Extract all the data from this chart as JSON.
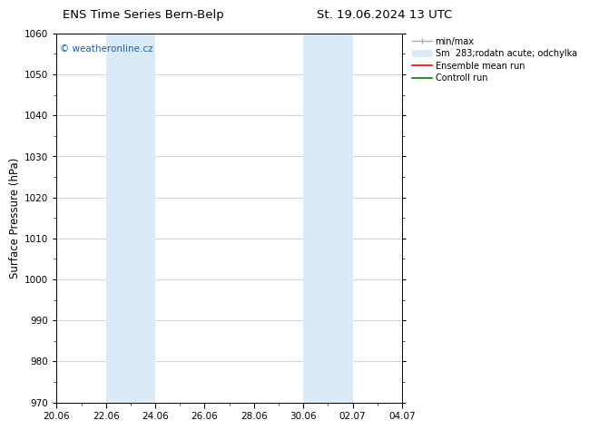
{
  "title_left": "ENS Time Series Bern-Belp",
  "title_right": "St. 19.06.2024 13 UTC",
  "ylabel": "Surface Pressure (hPa)",
  "ylim": [
    970,
    1060
  ],
  "yticks": [
    970,
    980,
    990,
    1000,
    1010,
    1020,
    1030,
    1040,
    1050,
    1060
  ],
  "xtick_labels": [
    "20.06",
    "22.06",
    "24.06",
    "26.06",
    "28.06",
    "30.06",
    "02.07",
    "04.07"
  ],
  "xtick_positions": [
    0,
    2,
    4,
    6,
    8,
    10,
    12,
    14
  ],
  "x_total": 14,
  "shaded_regions": [
    {
      "x_start": 2,
      "x_end": 4,
      "color": "#daeaf7"
    },
    {
      "x_start": 10,
      "x_end": 12,
      "color": "#daeaf7"
    }
  ],
  "watermark_text": "© weatheronline.cz",
  "watermark_color": "#1a5fb4",
  "legend_entries": [
    {
      "label": "min/max"
    },
    {
      "label": "Sm  283;rodatn acute; odchylka"
    },
    {
      "label": "Ensemble mean run"
    },
    {
      "label": "Controll run"
    }
  ],
  "bg_color": "#ffffff",
  "plot_bg_color": "#ffffff",
  "grid_color": "#cccccc",
  "tick_label_fontsize": 7.5,
  "axis_label_fontsize": 8.5,
  "title_fontsize": 9.5,
  "watermark_fontsize": 7.5,
  "legend_fontsize": 7.0
}
